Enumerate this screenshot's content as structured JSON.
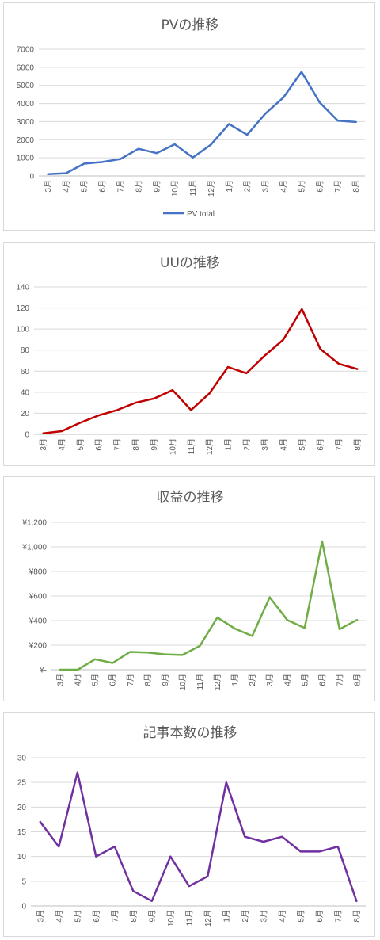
{
  "chart_data": [
    {
      "type": "line",
      "title": "PVの推移",
      "categories": [
        "3月",
        "4月",
        "5月",
        "6月",
        "7月",
        "8月",
        "9月",
        "10月",
        "11月",
        "12月",
        "1月",
        "2月",
        "3月",
        "4月",
        "5月",
        "6月",
        "7月",
        "8月"
      ],
      "ylim": [
        0,
        7000
      ],
      "yticks": [
        "0",
        "1000",
        "2000",
        "3000",
        "4000",
        "5000",
        "6000",
        "7000"
      ],
      "legend": "bottom",
      "grid": true,
      "color": "#4472c4",
      "series": [
        {
          "name": "PV total",
          "values": [
            100,
            150,
            680,
            770,
            930,
            1500,
            1260,
            1750,
            1020,
            1730,
            2870,
            2270,
            3440,
            4330,
            5750,
            4060,
            3050,
            2980
          ]
        }
      ]
    },
    {
      "type": "line",
      "title": "UUの推移",
      "categories": [
        "3月",
        "4月",
        "5月",
        "6月",
        "7月",
        "8月",
        "9月",
        "10月",
        "11月",
        "12月",
        "1月",
        "2月",
        "3月",
        "4月",
        "5月",
        "6月",
        "7月",
        "8月"
      ],
      "ylim": [
        0,
        140
      ],
      "yticks": [
        "0",
        "20",
        "40",
        "60",
        "80",
        "100",
        "120",
        "140"
      ],
      "grid": true,
      "color": "#c00000",
      "series": [
        {
          "values": [
            1,
            3,
            11,
            18,
            23,
            30,
            34,
            42,
            23,
            39,
            64,
            58,
            75,
            90,
            119,
            81,
            67,
            62
          ]
        }
      ]
    },
    {
      "type": "line",
      "title": "収益の推移",
      "categories": [
        "3月",
        "4月",
        "5月",
        "6月",
        "7月",
        "8月",
        "9月",
        "10月",
        "11月",
        "12月",
        "1月",
        "2月",
        "3月",
        "4月",
        "5月",
        "6月",
        "7月",
        "8月"
      ],
      "ylim": [
        0,
        1200
      ],
      "yticks": [
        "¥-",
        "¥200",
        "¥400",
        "¥600",
        "¥800",
        "¥1,000",
        "¥1,200"
      ],
      "grid": true,
      "color": "#70ad47",
      "series": [
        {
          "values": [
            0,
            0,
            85,
            55,
            145,
            140,
            125,
            120,
            195,
            425,
            335,
            275,
            590,
            405,
            340,
            1045,
            330,
            405
          ]
        }
      ]
    },
    {
      "type": "line",
      "title": "記事本数の推移",
      "categories": [
        "3月",
        "4月",
        "5月",
        "6月",
        "7月",
        "8月",
        "9月",
        "10月",
        "11月",
        "12月",
        "1月",
        "2月",
        "3月",
        "4月",
        "5月",
        "6月",
        "7月",
        "8月"
      ],
      "ylim": [
        0,
        30
      ],
      "yticks": [
        "0",
        "5",
        "10",
        "15",
        "20",
        "25",
        "30"
      ],
      "grid": true,
      "color": "#7030a0",
      "series": [
        {
          "values": [
            17,
            12,
            27,
            10,
            12,
            3,
            1,
            10,
            4,
            6,
            25,
            14,
            13,
            14,
            11,
            11,
            12,
            1
          ]
        }
      ]
    }
  ]
}
